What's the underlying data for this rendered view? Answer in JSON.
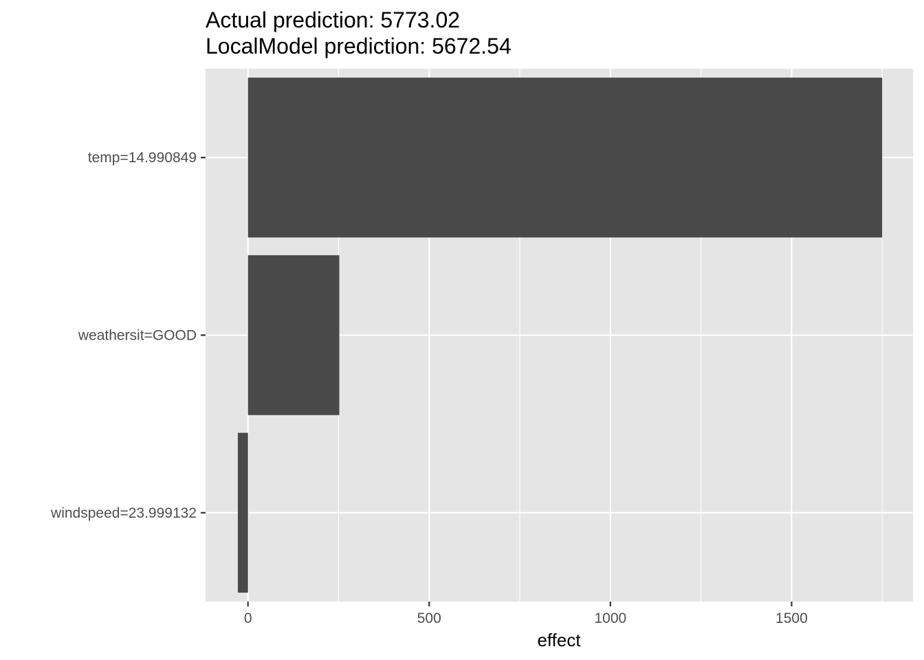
{
  "chart_data": {
    "type": "bar",
    "orientation": "horizontal",
    "title": "Actual prediction: 5773.02",
    "subtitle": "LocalModel prediction: 5672.54",
    "xlabel": "effect",
    "ylabel": "",
    "categories": [
      "temp=14.990849",
      "weathersit=GOOD",
      "windspeed=23.999132"
    ],
    "values": [
      1750,
      252,
      -28
    ],
    "xlim": [
      -117,
      1835
    ],
    "xticks": [
      0,
      500,
      1000,
      1500
    ],
    "x_tick_labels": [
      "0",
      "500",
      "1000",
      "1500"
    ],
    "grid": true,
    "legend": "none",
    "colors": {
      "panel": "#e5e5e5",
      "grid": "#ffffff",
      "bar": "#494949",
      "tick_text": "#4d4d4d"
    }
  }
}
